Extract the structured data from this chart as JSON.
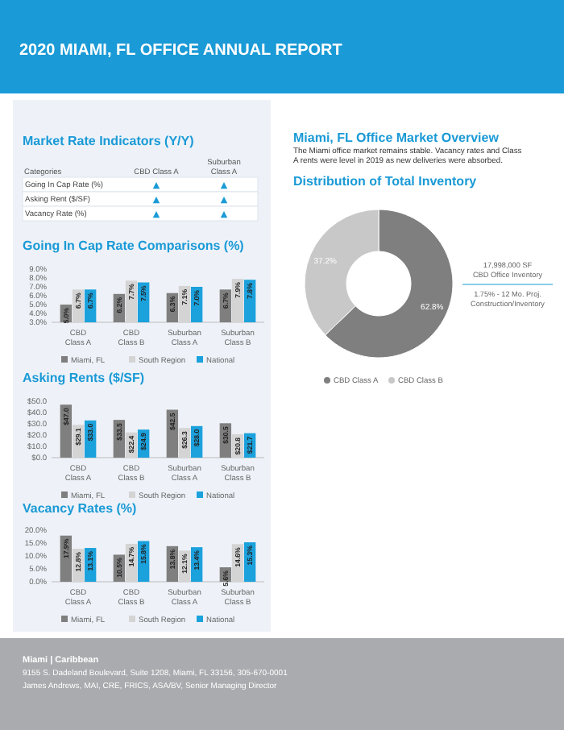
{
  "chart_data": [
    {
      "type": "other",
      "title": "2020 MIAMI, FL OFFICE ANNUAL REPORT",
      "annotations": [
        "Miami | Caribbean",
        "9155 S. Dadeland Boulevard, Suite 1208, Miami, FL 33156, 305-670-0001",
        "James Andrews, MAI, CRE, FRICS, ASA/BV, Senior Managing Director"
      ]
    },
    {
      "type": "other",
      "title": "Market Rate Indicators (Y/Y)",
      "legend_title": "Categories",
      "categories": [
        "CBD Class A",
        "Suburban Class A"
      ],
      "y_categories": [
        "Going In Cap Rate (%)",
        "Asking Rent ($/SF)",
        "Vacancy Rate (%)"
      ],
      "cell_labels": [
        [
          "▲",
          "▲"
        ],
        [
          "▲",
          "▲"
        ],
        [
          "▲",
          "▲"
        ]
      ]
    },
    {
      "type": "other",
      "title": "Miami, FL Office Market Overview",
      "subtitle": "The Miami office market remains stable. Vacancy rates and Class A rents were level in 2019 as new deliveries were absorbed."
    },
    {
      "type": "bar",
      "title": "Going In Cap Rate Comparisons (%)",
      "categories": [
        "CBD Class A",
        "CBD Class B",
        "Suburban Class A",
        "Suburban Class B"
      ],
      "ylim": [
        3,
        9
      ],
      "yticks": [
        {
          "value": 3,
          "label": "3.0%"
        },
        {
          "value": 4,
          "label": "4.0%"
        },
        {
          "value": 5,
          "label": "5.0%"
        },
        {
          "value": 6,
          "label": "6.0%"
        },
        {
          "value": 7,
          "label": "7.0%"
        },
        {
          "value": 8,
          "label": "8.0%"
        },
        {
          "value": 9,
          "label": "9.0%"
        }
      ],
      "legend": "bottom",
      "series": [
        {
          "name": "Miami, FL",
          "color": "#7f7f7f",
          "values": [
            5.0,
            6.2,
            6.3,
            6.7
          ],
          "value_labels": [
            "5.0%",
            "6.2%",
            "6.3%",
            "6.7%"
          ]
        },
        {
          "name": "South Region",
          "color": "#d4d4d4",
          "values": [
            6.7,
            7.7,
            7.1,
            7.9
          ],
          "value_labels": [
            "6.7%",
            "7.7%",
            "7.1%",
            "7.9%"
          ]
        },
        {
          "name": "National",
          "color": "#1ba1dc",
          "values": [
            6.7,
            7.5,
            7.0,
            7.8
          ],
          "value_labels": [
            "6.7%",
            "7.5%",
            "7.0%",
            "7.8%"
          ]
        }
      ]
    },
    {
      "type": "bar",
      "title": "Asking Rents ($/SF)",
      "categories": [
        "CBD Class A",
        "CBD Class B",
        "Suburban Class A",
        "Suburban Class B"
      ],
      "ylim": [
        0,
        50
      ],
      "yticks": [
        {
          "value": 0,
          "label": "$0.0"
        },
        {
          "value": 10,
          "label": "$10.0"
        },
        {
          "value": 20,
          "label": "$20.0"
        },
        {
          "value": 30,
          "label": "$30.0"
        },
        {
          "value": 40,
          "label": "$40.0"
        },
        {
          "value": 50,
          "label": "$50.0"
        }
      ],
      "legend": "bottom",
      "series": [
        {
          "name": "Miami, FL",
          "color": "#7f7f7f",
          "values": [
            47.0,
            33.5,
            42.5,
            30.5
          ],
          "value_labels": [
            "$47.0",
            "$33.5",
            "$42.5",
            "$30.5"
          ]
        },
        {
          "name": "South Region",
          "color": "#d4d4d4",
          "values": [
            29.1,
            22.4,
            26.3,
            20.8
          ],
          "value_labels": [
            "$29.1",
            "$22.4",
            "$26.3",
            "$20.8"
          ]
        },
        {
          "name": "National",
          "color": "#1ba1dc",
          "values": [
            33.0,
            24.9,
            28.0,
            21.7
          ],
          "value_labels": [
            "$33.0",
            "$24.9",
            "$28.0",
            "$21.7"
          ]
        }
      ]
    },
    {
      "type": "bar",
      "title": "Vacancy Rates (%)",
      "categories": [
        "CBD Class A",
        "CBD Class B",
        "Suburban Class A",
        "Suburban Class B"
      ],
      "ylim": [
        0,
        20
      ],
      "yticks": [
        {
          "value": 0,
          "label": "0.0%"
        },
        {
          "value": 5,
          "label": "5.0%"
        },
        {
          "value": 10,
          "label": "10.0%"
        },
        {
          "value": 15,
          "label": "15.0%"
        },
        {
          "value": 20,
          "label": "20.0%"
        }
      ],
      "legend": "bottom",
      "series": [
        {
          "name": "Miami, FL",
          "color": "#7f7f7f",
          "values": [
            17.9,
            10.5,
            13.8,
            5.6
          ],
          "value_labels": [
            "17.9%",
            "10.5%",
            "13.8%",
            "5.6%"
          ]
        },
        {
          "name": "South Region",
          "color": "#d4d4d4",
          "values": [
            12.8,
            14.7,
            12.1,
            14.6
          ],
          "value_labels": [
            "12.8%",
            "14.7%",
            "12.1%",
            "14.6%"
          ]
        },
        {
          "name": "National",
          "color": "#1ba1dc",
          "values": [
            13.1,
            15.8,
            13.4,
            15.3
          ],
          "value_labels": [
            "13.1%",
            "15.8%",
            "13.4%",
            "15.3%"
          ]
        }
      ]
    },
    {
      "type": "donut",
      "title": "Distribution of Total Inventory",
      "categories": [
        "CBD Class A",
        "CBD Class B"
      ],
      "values": [
        62.8,
        37.2
      ],
      "colors": [
        "#7f7f7f",
        "#c8c8c8"
      ],
      "value_labels": [
        "62.8%",
        "37.2%"
      ],
      "legend": "bottom",
      "annotations": [
        "17,998,000 SF\nCBD Office Inventory",
        "1.75% - 12 Mo. Proj.\nConstruction/Inventory"
      ]
    }
  ]
}
